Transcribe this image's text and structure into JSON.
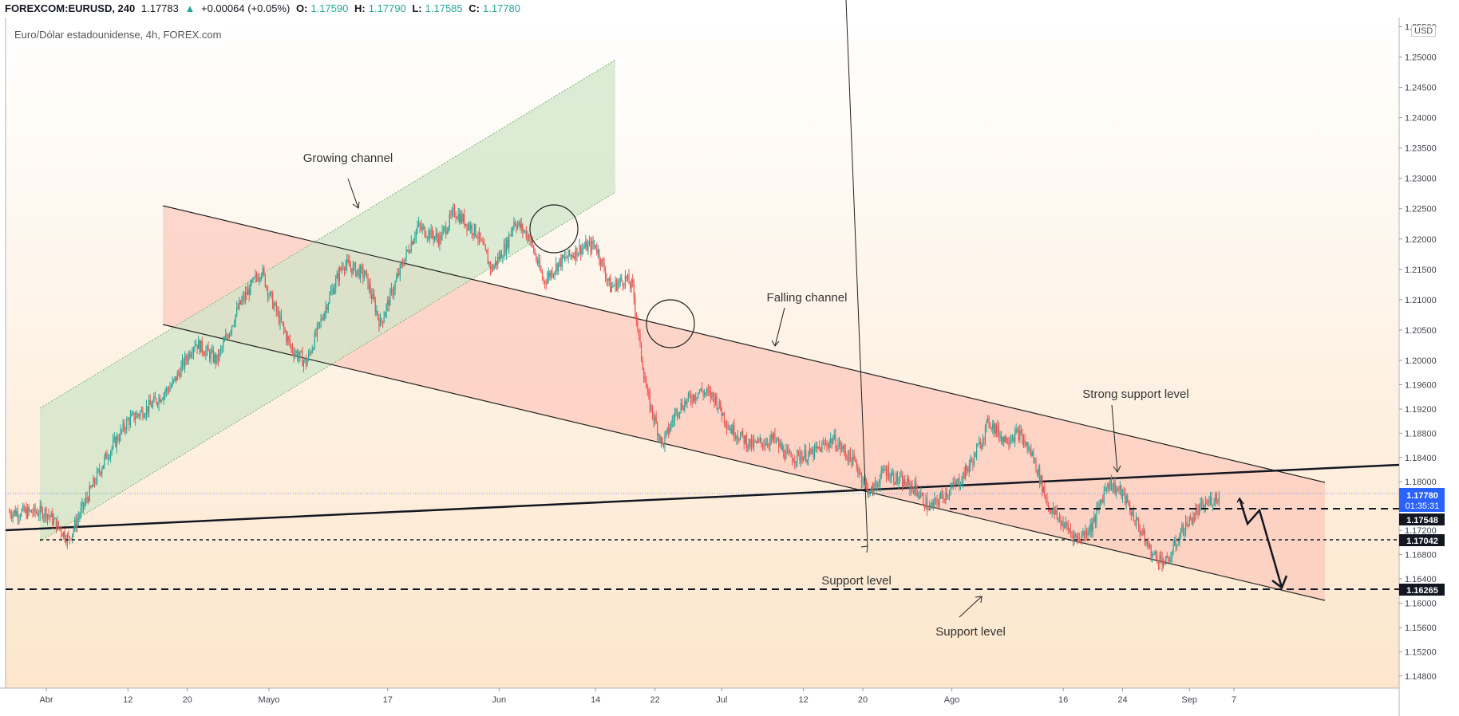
{
  "header": {
    "symbol": "FOREXCOM:EURUSD, 240",
    "last": "1.17783",
    "arrow": "▲",
    "change": "+0.00064 (+0.05%)",
    "o_label": "O:",
    "o": "1.17590",
    "h_label": "H:",
    "h": "1.17790",
    "l_label": "L:",
    "l": "1.17585",
    "c_label": "C:",
    "c": "1.17780"
  },
  "legend_title": "Euro/Dólar estadounidense, 4h, FOREX.com",
  "currency_badge": "USD",
  "chart_data": {
    "type": "candlestick",
    "title": "",
    "x_tick_labels": [
      "Abr",
      "12",
      "20",
      "Mayo",
      "17",
      "Jun",
      "14",
      "22",
      "Jul",
      "12",
      "20",
      "Ago",
      "16",
      "24",
      "Sep",
      "7"
    ],
    "y_tick_labels": [
      "1.25500",
      "1.25000",
      "1.24500",
      "1.24000",
      "1.23500",
      "1.23000",
      "1.22500",
      "1.22000",
      "1.21500",
      "1.21000",
      "1.20500",
      "1.20000",
      "1.19600",
      "1.19200",
      "1.18800",
      "1.18400",
      "1.18000",
      "1.17600",
      "1.17200",
      "1.16800",
      "1.16400",
      "1.16000",
      "1.15600",
      "1.15200",
      "1.14800"
    ],
    "ylim": [
      1.146,
      1.2565
    ],
    "current_price": "1.17780",
    "countdown": "01:35:31",
    "price_levels": [
      "1.17548",
      "1.17042",
      "1.16265"
    ],
    "annotations": [
      "Growing channel",
      "Falling channel",
      "Strong support level",
      "Support level",
      "Support level"
    ],
    "price_path": [
      {
        "d": 0,
        "p": 1.175
      },
      {
        "d": 2,
        "p": 1.172
      },
      {
        "d": 3,
        "p": 1.1705
      },
      {
        "d": 5,
        "p": 1.176
      },
      {
        "d": 8,
        "p": 1.184
      },
      {
        "d": 11,
        "p": 1.19
      },
      {
        "d": 14,
        "p": 1.1925
      },
      {
        "d": 17,
        "p": 1.196
      },
      {
        "d": 20,
        "p": 1.203
      },
      {
        "d": 23,
        "p": 1.2
      },
      {
        "d": 26,
        "p": 1.209
      },
      {
        "d": 29,
        "p": 1.215
      },
      {
        "d": 30,
        "p": 1.211
      },
      {
        "d": 33,
        "p": 1.202
      },
      {
        "d": 35,
        "p": 1.1995
      },
      {
        "d": 38,
        "p": 1.21
      },
      {
        "d": 40,
        "p": 1.216
      },
      {
        "d": 43,
        "p": 1.214
      },
      {
        "d": 45,
        "p": 1.206
      },
      {
        "d": 48,
        "p": 1.216
      },
      {
        "d": 50,
        "p": 1.222
      },
      {
        "d": 53,
        "p": 1.22
      },
      {
        "d": 55,
        "p": 1.2245
      },
      {
        "d": 58,
        "p": 1.221
      },
      {
        "d": 60,
        "p": 1.215
      },
      {
        "d": 62,
        "p": 1.219
      },
      {
        "d": 63,
        "p": 1.223
      },
      {
        "d": 65,
        "p": 1.2205
      },
      {
        "d": 67,
        "p": 1.213
      },
      {
        "d": 69,
        "p": 1.216
      },
      {
        "d": 72,
        "p": 1.2185
      },
      {
        "d": 74,
        "p": 1.219
      },
      {
        "d": 76,
        "p": 1.212
      },
      {
        "d": 78,
        "p": 1.2135
      },
      {
        "d": 79,
        "p": 1.212
      },
      {
        "d": 80,
        "p": 1.202
      },
      {
        "d": 81,
        "p": 1.194
      },
      {
        "d": 83,
        "p": 1.186
      },
      {
        "d": 85,
        "p": 1.192
      },
      {
        "d": 88,
        "p": 1.195
      },
      {
        "d": 90,
        "p": 1.194
      },
      {
        "d": 92,
        "p": 1.189
      },
      {
        "d": 95,
        "p": 1.186
      },
      {
        "d": 98,
        "p": 1.187
      },
      {
        "d": 100,
        "p": 1.184
      },
      {
        "d": 103,
        "p": 1.1845
      },
      {
        "d": 106,
        "p": 1.187
      },
      {
        "d": 109,
        "p": 1.183
      },
      {
        "d": 111,
        "p": 1.178
      },
      {
        "d": 113,
        "p": 1.182
      },
      {
        "d": 115,
        "p": 1.18
      },
      {
        "d": 117,
        "p": 1.179
      },
      {
        "d": 119,
        "p": 1.1755
      },
      {
        "d": 121,
        "p": 1.178
      },
      {
        "d": 123,
        "p": 1.18
      },
      {
        "d": 125,
        "p": 1.184
      },
      {
        "d": 127,
        "p": 1.19
      },
      {
        "d": 129,
        "p": 1.187
      },
      {
        "d": 131,
        "p": 1.188
      },
      {
        "d": 133,
        "p": 1.184
      },
      {
        "d": 135,
        "p": 1.176
      },
      {
        "d": 137,
        "p": 1.173
      },
      {
        "d": 139,
        "p": 1.1705
      },
      {
        "d": 141,
        "p": 1.173
      },
      {
        "d": 143,
        "p": 1.18
      },
      {
        "d": 145,
        "p": 1.178
      },
      {
        "d": 147,
        "p": 1.173
      },
      {
        "d": 149,
        "p": 1.168
      },
      {
        "d": 151,
        "p": 1.1666
      },
      {
        "d": 153,
        "p": 1.172
      },
      {
        "d": 155,
        "p": 1.175
      },
      {
        "d": 157,
        "p": 1.177
      },
      {
        "d": 158,
        "p": 1.1778
      }
    ]
  }
}
